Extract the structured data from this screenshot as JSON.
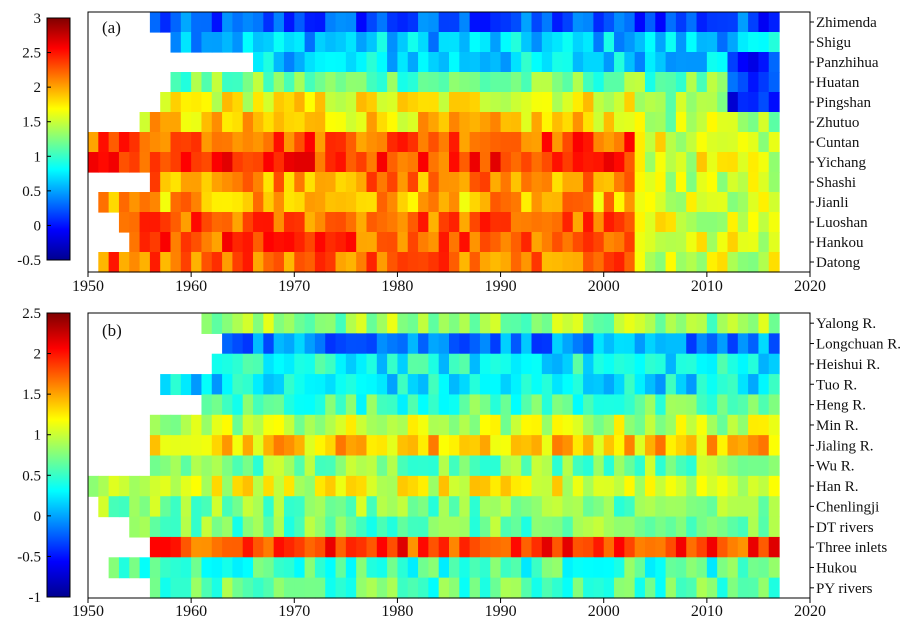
{
  "chart_data": [
    {
      "type": "heatmap",
      "panel_label": "(a)",
      "colorbar": {
        "min": -0.5,
        "max": 3,
        "ticks": [
          "3",
          "2.5",
          "2",
          "1.5",
          "1",
          "0.5",
          "0",
          "-0.5"
        ]
      },
      "x_ticks": [
        "1950",
        "1960",
        "1970",
        "1980",
        "1990",
        "2000",
        "2010",
        "2020"
      ],
      "xlim": [
        1950,
        2020
      ],
      "rows": [
        {
          "name": "Zhimenda",
          "start": 1956,
          "level": 0.2
        },
        {
          "name": "Shigu",
          "start": 1958,
          "level": 0.32
        },
        {
          "name": "Panzhihua",
          "start": 1966,
          "level": 0.34
        },
        {
          "name": "Huatan",
          "start": 1958,
          "level": 0.48
        },
        {
          "name": "Pingshan",
          "start": 1957,
          "level": 0.62
        },
        {
          "name": "Zhutuo",
          "start": 1955,
          "level": 0.66
        },
        {
          "name": "Cuntan",
          "start": 1950,
          "level": 0.8
        },
        {
          "name": "Yichang",
          "start": 1950,
          "level": 0.82
        },
        {
          "name": "Shashi",
          "start": 1956,
          "level": 0.74
        },
        {
          "name": "Jianli",
          "start": 1951,
          "level": 0.7
        },
        {
          "name": "Luoshan",
          "start": 1953,
          "level": 0.78
        },
        {
          "name": "Hankou",
          "start": 1954,
          "level": 0.8
        },
        {
          "name": "Datong",
          "start": 1951,
          "level": 0.78
        }
      ]
    },
    {
      "type": "heatmap",
      "panel_label": "(b)",
      "colorbar": {
        "min": -1,
        "max": 2.5,
        "ticks": [
          "2.5",
          "2",
          "1.5",
          "1",
          "0.5",
          "0",
          "-0.5",
          "-1"
        ]
      },
      "x_ticks": [
        "1950",
        "1960",
        "1970",
        "1980",
        "1990",
        "2000",
        "2010",
        "2020"
      ],
      "xlim": [
        1950,
        2020
      ],
      "rows": [
        {
          "name": "Yalong R.",
          "start": 1961,
          "level": 0.52
        },
        {
          "name": "Longchuan R.",
          "start": 1963,
          "level": 0.26
        },
        {
          "name": "Heishui R.",
          "start": 1962,
          "level": 0.38
        },
        {
          "name": "Tuo R.",
          "start": 1957,
          "level": 0.36
        },
        {
          "name": "Heng R.",
          "start": 1961,
          "level": 0.45
        },
        {
          "name": "Min R.",
          "start": 1956,
          "level": 0.56
        },
        {
          "name": "Jialing R.",
          "start": 1956,
          "level": 0.68
        },
        {
          "name": "Wu R.",
          "start": 1956,
          "level": 0.5
        },
        {
          "name": "Han R.",
          "start": 1950,
          "level": 0.6
        },
        {
          "name": "Chenlingji",
          "start": 1951,
          "level": 0.5
        },
        {
          "name": "DT rivers",
          "start": 1954,
          "level": 0.48
        },
        {
          "name": "Three inlets",
          "start": 1956,
          "level": 0.82
        },
        {
          "name": "Hukou",
          "start": 1952,
          "level": 0.44
        },
        {
          "name": "PY rivers",
          "start": 1956,
          "level": 0.46
        }
      ]
    }
  ]
}
